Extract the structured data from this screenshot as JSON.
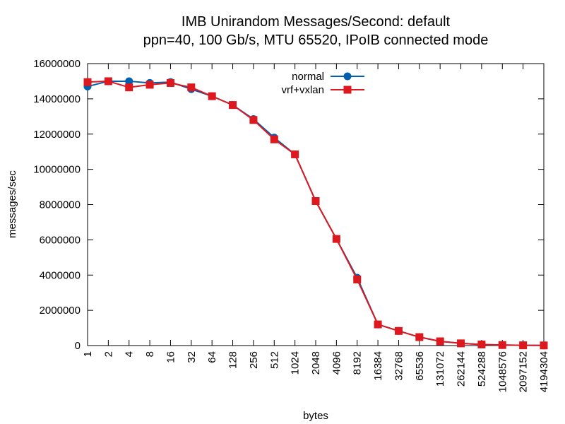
{
  "chart_data": {
    "type": "line",
    "title_line1": "IMB Unirandom Messages/Second: default",
    "title_line2": "ppn=40, 100 Gb/s, MTU 65520, IPoIB connected mode",
    "xlabel": "bytes",
    "ylabel": "messages/sec",
    "categories": [
      "1",
      "2",
      "4",
      "8",
      "16",
      "32",
      "64",
      "128",
      "256",
      "512",
      "1024",
      "2048",
      "4096",
      "8192",
      "16384",
      "32768",
      "65536",
      "131072",
      "262144",
      "524288",
      "1048576",
      "2097152",
      "4194304"
    ],
    "yticks": [
      "0",
      "2000000",
      "4000000",
      "6000000",
      "8000000",
      "10000000",
      "12000000",
      "14000000",
      "16000000"
    ],
    "ylim": [
      0,
      16000000
    ],
    "grid": false,
    "legend_position": "top-center",
    "series": [
      {
        "name": "normal",
        "color": "#0060ad",
        "marker": "circle",
        "values": [
          14700000,
          15000000,
          15000000,
          14900000,
          14950000,
          14550000,
          14150000,
          13650000,
          12850000,
          11800000,
          10850000,
          8200000,
          6050000,
          3850000,
          1200000,
          830000,
          480000,
          240000,
          125000,
          62000,
          30000,
          15000,
          8000
        ]
      },
      {
        "name": "vrf+vxlan",
        "color": "#dd181f",
        "marker": "square",
        "values": [
          14950000,
          15000000,
          14650000,
          14800000,
          14900000,
          14650000,
          14150000,
          13650000,
          12800000,
          11700000,
          10850000,
          8200000,
          6050000,
          3750000,
          1200000,
          830000,
          480000,
          240000,
          125000,
          62000,
          30000,
          15000,
          8000
        ]
      }
    ]
  }
}
